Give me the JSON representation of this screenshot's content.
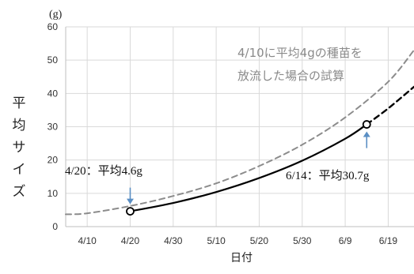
{
  "chart_data": {
    "type": "line",
    "title": "",
    "ylabel": "平均サイズ",
    "yunit": "(g)",
    "xlabel": "日付",
    "ylim": [
      0,
      60
    ],
    "yticks": [
      0,
      10,
      20,
      30,
      40,
      50,
      60
    ],
    "xlim": [
      "2023-04-05",
      "2023-06-25"
    ],
    "xticks": [
      {
        "date": "2023-04-10",
        "label": "4/10"
      },
      {
        "date": "2023-04-20",
        "label": "4/20"
      },
      {
        "date": "2023-04-30",
        "label": "4/30"
      },
      {
        "date": "2023-05-10",
        "label": "5/10"
      },
      {
        "date": "2023-05-20",
        "label": "5/20"
      },
      {
        "date": "2023-05-30",
        "label": "5/30"
      },
      {
        "date": "2023-06-09",
        "label": "6/9"
      },
      {
        "date": "2023-06-19",
        "label": "6/19"
      }
    ],
    "grid": true,
    "series": [
      {
        "style": "solid-black",
        "points": [
          {
            "x": "2023-04-20",
            "y": 4.6
          },
          {
            "x": "2023-04-30",
            "y": 7.1
          },
          {
            "x": "2023-05-10",
            "y": 10.4
          },
          {
            "x": "2023-05-20",
            "y": 14.6
          },
          {
            "x": "2023-05-30",
            "y": 19.8
          },
          {
            "x": "2023-06-09",
            "y": 26.4
          },
          {
            "x": "2023-06-14",
            "y": 30.7
          }
        ]
      },
      {
        "style": "dashed-black",
        "points": [
          {
            "x": "2023-06-14",
            "y": 30.7
          },
          {
            "x": "2023-06-19",
            "y": 35.5
          },
          {
            "x": "2023-06-25",
            "y": 42.0
          }
        ]
      },
      {
        "style": "dashed-gray",
        "points": [
          {
            "x": "2023-04-05",
            "y": 3.7
          },
          {
            "x": "2023-04-10",
            "y": 4.0
          },
          {
            "x": "2023-04-20",
            "y": 6.2
          },
          {
            "x": "2023-04-30",
            "y": 9.2
          },
          {
            "x": "2023-05-10",
            "y": 13.0
          },
          {
            "x": "2023-05-20",
            "y": 18.2
          },
          {
            "x": "2023-05-30",
            "y": 24.6
          },
          {
            "x": "2023-06-09",
            "y": 32.8
          },
          {
            "x": "2023-06-19",
            "y": 43.5
          },
          {
            "x": "2023-06-25",
            "y": 53.0
          }
        ]
      }
    ],
    "markers": [
      {
        "x": "2023-04-20",
        "y": 4.6,
        "label": "4/20：平均4.6g"
      },
      {
        "x": "2023-06-14",
        "y": 30.7,
        "label": "6/14：平均30.7g"
      }
    ],
    "note_lines": [
      "4/10に平均4gの種苗を",
      "放流した場合の試算"
    ],
    "colors": {
      "solid_line": "#000000",
      "projection_line": "#000000",
      "scenario_line": "#8c8c8c",
      "arrow": "#5b8fc4",
      "grid": "#d9d9d9",
      "axis": "#bfbfbf"
    }
  }
}
